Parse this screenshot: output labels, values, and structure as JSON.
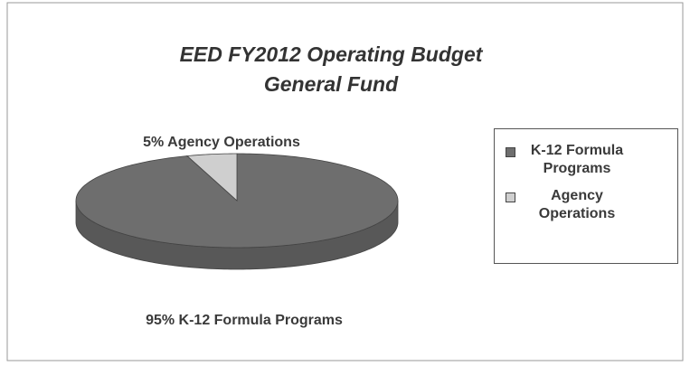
{
  "chart_data": {
    "type": "pie",
    "title": "EED FY2012 Operating Budget",
    "subtitle": "General Fund",
    "categories": [
      "K-12 Formula Programs",
      "Agency Operations"
    ],
    "values": [
      95,
      5
    ],
    "value_labels": [
      "95% K-12 Formula Programs",
      "5% Agency Operations"
    ],
    "colors": [
      "#6e6e6e",
      "#cfcfcf"
    ],
    "legend": "right"
  }
}
